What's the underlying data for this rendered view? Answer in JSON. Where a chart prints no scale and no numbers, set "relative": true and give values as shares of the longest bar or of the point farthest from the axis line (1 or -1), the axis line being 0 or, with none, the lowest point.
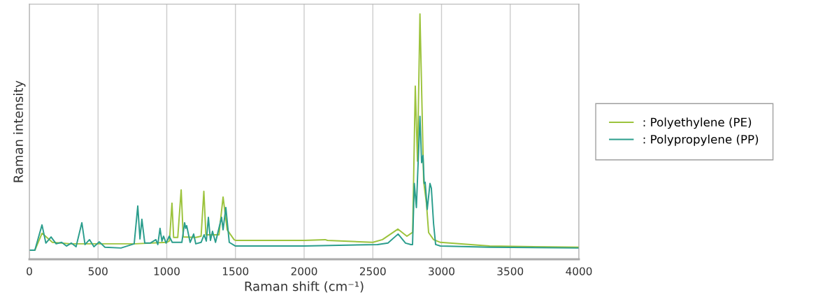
{
  "chart_data": {
    "type": "line",
    "relative": true,
    "xlabel": "Raman shift (cm⁻¹)",
    "ylabel": "Raman intensity",
    "xlim": [
      0,
      4000
    ],
    "xticks": [
      0,
      500,
      1000,
      1500,
      2000,
      2500,
      3000,
      3500,
      4000
    ],
    "grid": "x",
    "legend": "right",
    "line_style": "solid",
    "marker": "none",
    "series": [
      {
        "name": ": Polyethylene (PE)",
        "color": "#9cc33c",
        "x": [
          0,
          40,
          92,
          168,
          300,
          500,
          770,
          1000,
          1020,
          1038,
          1050,
          1080,
          1105,
          1120,
          1211,
          1250,
          1270,
          1285,
          1380,
          1410,
          1440,
          1490,
          1500,
          2000,
          2153,
          2170,
          2500,
          2570,
          2682,
          2748,
          2790,
          2809,
          2825,
          2843,
          2870,
          2890,
          2906,
          2942,
          2992,
          3350,
          4000
        ],
        "values": [
          0.037,
          0.037,
          0.106,
          0.069,
          0.063,
          0.063,
          0.063,
          0.069,
          0.075,
          0.229,
          0.089,
          0.089,
          0.283,
          0.091,
          0.089,
          0.094,
          0.277,
          0.1,
          0.1,
          0.254,
          0.12,
          0.08,
          0.077,
          0.077,
          0.08,
          0.077,
          0.069,
          0.08,
          0.123,
          0.094,
          0.11,
          0.706,
          0.4,
          1.0,
          0.317,
          0.23,
          0.109,
          0.08,
          0.069,
          0.054,
          0.049
        ]
      },
      {
        "name": ": Polypropylene (PP)",
        "color": "#2a9d8c",
        "x": [
          0,
          40,
          92,
          120,
          158,
          195,
          235,
          270,
          305,
          340,
          382,
          405,
          438,
          470,
          509,
          550,
          667,
          763,
          789,
          805,
          819,
          840,
          880,
          921,
          935,
          951,
          965,
          977,
          995,
          1018,
          1040,
          1110,
          1130,
          1138,
          1145,
          1170,
          1196,
          1211,
          1250,
          1272,
          1288,
          1303,
          1318,
          1333,
          1355,
          1399,
          1410,
          1430,
          1455,
          1500,
          2000,
          2534,
          2610,
          2684,
          2738,
          2778,
          2789,
          2802,
          2817,
          2843,
          2855,
          2865,
          2874,
          2881,
          2896,
          2916,
          2926,
          2942,
          2957,
          2992,
          3350,
          4000
        ],
        "values": [
          0.037,
          0.037,
          0.14,
          0.066,
          0.091,
          0.063,
          0.069,
          0.054,
          0.066,
          0.051,
          0.149,
          0.06,
          0.08,
          0.051,
          0.071,
          0.049,
          0.046,
          0.063,
          0.217,
          0.083,
          0.163,
          0.066,
          0.066,
          0.08,
          0.06,
          0.126,
          0.074,
          0.094,
          0.066,
          0.094,
          0.069,
          0.069,
          0.149,
          0.126,
          0.137,
          0.069,
          0.103,
          0.063,
          0.069,
          0.1,
          0.074,
          0.171,
          0.077,
          0.114,
          0.069,
          0.171,
          0.12,
          0.211,
          0.069,
          0.054,
          0.054,
          0.06,
          0.066,
          0.103,
          0.066,
          0.06,
          0.06,
          0.309,
          0.211,
          0.583,
          0.394,
          0.423,
          0.309,
          0.314,
          0.203,
          0.309,
          0.29,
          0.146,
          0.06,
          0.054,
          0.049,
          0.046
        ]
      }
    ]
  }
}
